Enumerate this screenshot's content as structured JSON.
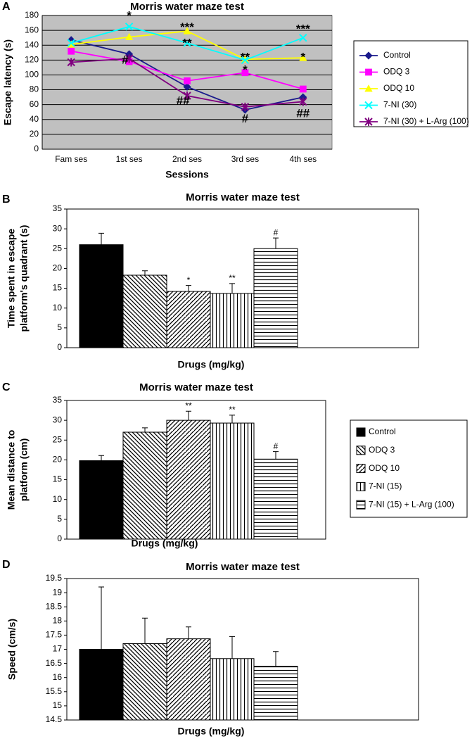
{
  "chart_data": [
    {
      "type": "line",
      "panel": "A",
      "title": "Morris water maze test",
      "xlabel": "Sessions",
      "ylabel": [
        "Escape latency (s)"
      ],
      "categories": [
        "Fam ses",
        "1st ses",
        "2nd ses",
        "3rd ses",
        "4th ses"
      ],
      "series": [
        {
          "name": "Control",
          "color": "#1a1a8c",
          "marker": "diamond",
          "values": [
            147,
            128,
            84,
            53,
            70
          ]
        },
        {
          "name": "ODQ 3",
          "color": "#ff00ff",
          "marker": "square",
          "values": [
            132,
            118,
            92,
            103,
            81
          ]
        },
        {
          "name": "ODQ 10",
          "color": "#ffff00",
          "marker": "triangle",
          "values": [
            141,
            151,
            159,
            121,
            123
          ]
        },
        {
          "name": "7-NI (30)",
          "color": "#00ffff",
          "marker": "x",
          "values": [
            143,
            165,
            143,
            120,
            150
          ]
        },
        {
          "name": "7-NI (30) + L-Arg (100)",
          "color": "#800080",
          "marker": "asterisk",
          "values": [
            117,
            122,
            72,
            57,
            64
          ]
        }
      ],
      "ylim": [
        0,
        180
      ],
      "yticks": [
        0,
        20,
        40,
        60,
        80,
        100,
        120,
        140,
        160,
        180
      ],
      "grid": true,
      "annotations": [
        {
          "text": "*",
          "x": 1,
          "y": 183
        },
        {
          "text": "#",
          "x": 0.93,
          "y": 123
        },
        {
          "text": "***",
          "x": 2,
          "y": 167
        },
        {
          "text": "**",
          "x": 2,
          "y": 146
        },
        {
          "text": "##",
          "x": 1.93,
          "y": 68
        },
        {
          "text": "**",
          "x": 3,
          "y": 127
        },
        {
          "text": "*",
          "x": 3,
          "y": 110
        },
        {
          "text": "#",
          "x": 3,
          "y": 44
        },
        {
          "text": "***",
          "x": 4,
          "y": 165
        },
        {
          "text": "*",
          "x": 4,
          "y": 127
        },
        {
          "text": "##",
          "x": 4,
          "y": 51
        }
      ]
    },
    {
      "type": "bar",
      "panel": "B",
      "title": "Morris water maze test",
      "xlabel": "Drugs (mg/kg)",
      "ylabel": [
        "Time spent in escape",
        "platform's quadrant (s)"
      ],
      "values": [
        26,
        18.3,
        14.2,
        13.7,
        25
      ],
      "errors": [
        2.9,
        1.1,
        1.5,
        2.5,
        2.7
      ],
      "patterns": [
        "solid",
        "back-diagonal",
        "diagonal",
        "vertical",
        "horizontal"
      ],
      "significance": [
        null,
        null,
        "*",
        "**",
        "#"
      ],
      "ylim": [
        0,
        35
      ],
      "yticks": [
        0,
        5,
        10,
        15,
        20,
        25,
        30,
        35
      ]
    },
    {
      "type": "bar",
      "panel": "C",
      "title": "Morris water maze test",
      "xlabel": "Drugs (mg/kg)",
      "ylabel": [
        "Mean distance to",
        "platform (cm)"
      ],
      "values": [
        19.8,
        27,
        30,
        29.3,
        20.2
      ],
      "errors": [
        1.3,
        1.1,
        2.3,
        2,
        1.9
      ],
      "patterns": [
        "solid",
        "back-diagonal",
        "diagonal",
        "vertical",
        "horizontal"
      ],
      "significance": [
        null,
        null,
        "**",
        "**",
        "#"
      ],
      "legend": [
        "Control",
        "ODQ 3",
        "ODQ 10",
        "7-NI (15)",
        "7-NI (15) + L-Arg (100)"
      ],
      "ylim": [
        0,
        35
      ],
      "yticks": [
        0,
        5,
        10,
        15,
        20,
        25,
        30,
        35
      ]
    },
    {
      "type": "bar",
      "panel": "D",
      "title": "Morris water maze test",
      "xlabel": "Drugs (mg/kg)",
      "ylabel": [
        "Speed (cm/s)"
      ],
      "values": [
        17,
        17.2,
        17.37,
        16.67,
        16.4
      ],
      "errors": [
        2.2,
        0.9,
        0.42,
        0.78,
        0.52
      ],
      "patterns": [
        "solid",
        "back-diagonal",
        "diagonal",
        "vertical",
        "horizontal"
      ],
      "ylim": [
        14.5,
        19.5
      ],
      "yticks": [
        14.5,
        15,
        15.5,
        16,
        16.5,
        17,
        17.5,
        18,
        18.5,
        19,
        19.5
      ]
    }
  ]
}
